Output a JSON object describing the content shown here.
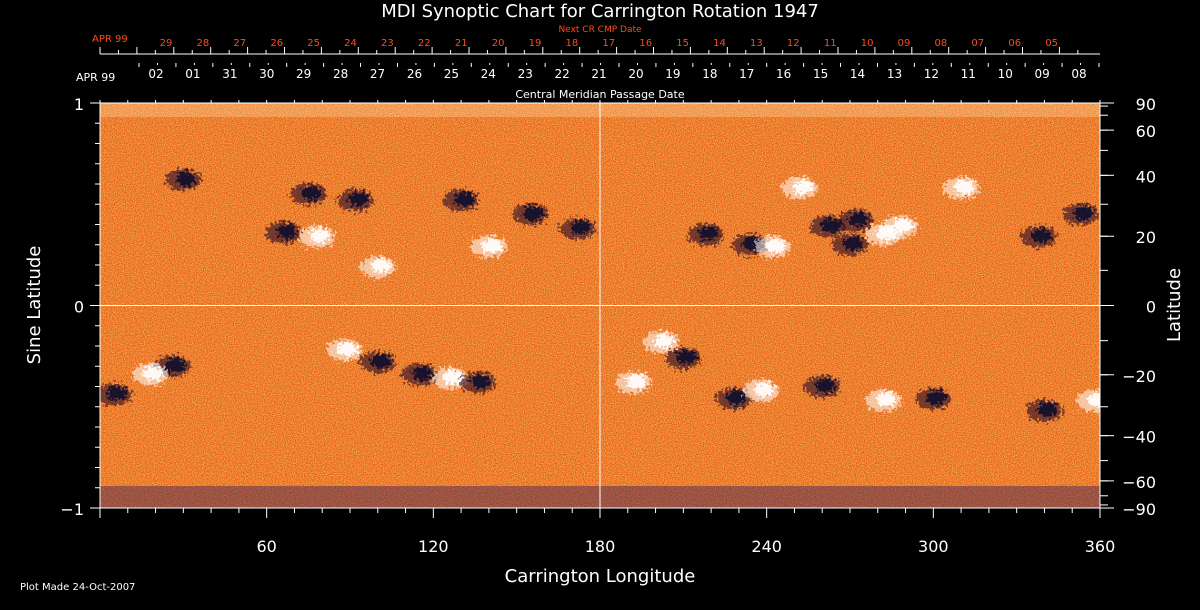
{
  "chart_data": {
    "type": "heatmap",
    "title": "MDI Synoptic Chart for Carrington Rotation 1947",
    "xlabel": "Carrington Longitude",
    "ylabel_left": "Sine Latitude",
    "ylabel_right": "Latitude",
    "xlim": [
      0,
      360
    ],
    "ylim": [
      -1,
      1
    ],
    "x_ticks": [
      60,
      120,
      180,
      240,
      300,
      360
    ],
    "y_ticks_left": [
      {
        "value": 1,
        "label": "1"
      },
      {
        "value": 0,
        "label": "0"
      },
      {
        "value": -1,
        "label": "−1"
      }
    ],
    "latitude_ticks": [
      {
        "lat": 90,
        "label": "90"
      },
      {
        "lat": 60,
        "label": "60"
      },
      {
        "lat": 40,
        "label": "40"
      },
      {
        "lat": 20,
        "label": "20"
      },
      {
        "lat": 0,
        "label": "0"
      },
      {
        "lat": -20,
        "label": "−20"
      },
      {
        "lat": -40,
        "label": "−40"
      },
      {
        "lat": -60,
        "label": "−60"
      },
      {
        "lat": -90,
        "label": "−90"
      }
    ],
    "grid_lines": {
      "x": [
        180
      ],
      "y": [
        0
      ]
    },
    "cmp_axis": {
      "title": "Central Meridian Passage Date",
      "month_label": "APR 99",
      "dates": [
        "02",
        "01",
        "31",
        "30",
        "29",
        "28",
        "27",
        "26",
        "25",
        "24",
        "23",
        "22",
        "21",
        "20",
        "19",
        "18",
        "17",
        "16",
        "15",
        "14",
        "13",
        "12",
        "11",
        "10",
        "09",
        "08"
      ]
    },
    "next_cmp_axis": {
      "title": "Next CR CMP Date",
      "month_label": "APR 99",
      "dates": [
        "29",
        "28",
        "27",
        "26",
        "25",
        "24",
        "23",
        "22",
        "21",
        "20",
        "19",
        "18",
        "17",
        "16",
        "15",
        "14",
        "13",
        "12",
        "11",
        "10",
        "09",
        "08",
        "07",
        "06",
        "05"
      ]
    },
    "colors": {
      "background": "#000000",
      "axes": "#ffffff",
      "next_axis": "#ff4a1a",
      "field_base": "#e85a10",
      "positive_polarity": "#ffffff",
      "negative_polarity": "#12082a"
    },
    "active_regions": [
      {
        "polarity": "negative",
        "lon": 30,
        "sinlat": 0.62
      },
      {
        "polarity": "negative",
        "lon": 66,
        "sinlat": 0.36
      },
      {
        "polarity": "positive",
        "lon": 78,
        "sinlat": 0.34
      },
      {
        "polarity": "negative",
        "lon": 92,
        "sinlat": 0.52
      },
      {
        "polarity": "negative",
        "lon": 75,
        "sinlat": 0.55
      },
      {
        "polarity": "positive",
        "lon": 100,
        "sinlat": 0.19
      },
      {
        "polarity": "negative",
        "lon": 130,
        "sinlat": 0.52
      },
      {
        "polarity": "negative",
        "lon": 155,
        "sinlat": 0.45
      },
      {
        "polarity": "positive",
        "lon": 140,
        "sinlat": 0.29
      },
      {
        "polarity": "negative",
        "lon": 172,
        "sinlat": 0.38
      },
      {
        "polarity": "negative",
        "lon": 218,
        "sinlat": 0.35
      },
      {
        "polarity": "negative",
        "lon": 234,
        "sinlat": 0.3
      },
      {
        "polarity": "positive",
        "lon": 242,
        "sinlat": 0.29
      },
      {
        "polarity": "positive",
        "lon": 252,
        "sinlat": 0.58
      },
      {
        "polarity": "negative",
        "lon": 262,
        "sinlat": 0.39
      },
      {
        "polarity": "negative",
        "lon": 272,
        "sinlat": 0.42
      },
      {
        "polarity": "positive",
        "lon": 282,
        "sinlat": 0.35
      },
      {
        "polarity": "positive",
        "lon": 288,
        "sinlat": 0.39
      },
      {
        "polarity": "negative",
        "lon": 270,
        "sinlat": 0.3
      },
      {
        "polarity": "positive",
        "lon": 310,
        "sinlat": 0.58
      },
      {
        "polarity": "negative",
        "lon": 338,
        "sinlat": 0.34
      },
      {
        "polarity": "negative",
        "lon": 353,
        "sinlat": 0.45
      },
      {
        "polarity": "negative",
        "lon": 5,
        "sinlat": -0.44
      },
      {
        "polarity": "negative",
        "lon": 26,
        "sinlat": -0.3
      },
      {
        "polarity": "positive",
        "lon": 18,
        "sinlat": -0.34
      },
      {
        "polarity": "positive",
        "lon": 88,
        "sinlat": -0.22
      },
      {
        "polarity": "negative",
        "lon": 100,
        "sinlat": -0.28
      },
      {
        "polarity": "negative",
        "lon": 115,
        "sinlat": -0.34
      },
      {
        "polarity": "positive",
        "lon": 126,
        "sinlat": -0.36
      },
      {
        "polarity": "negative",
        "lon": 136,
        "sinlat": -0.38
      },
      {
        "polarity": "positive",
        "lon": 202,
        "sinlat": -0.18
      },
      {
        "polarity": "negative",
        "lon": 210,
        "sinlat": -0.26
      },
      {
        "polarity": "positive",
        "lon": 192,
        "sinlat": -0.38
      },
      {
        "polarity": "negative",
        "lon": 228,
        "sinlat": -0.46
      },
      {
        "polarity": "positive",
        "lon": 238,
        "sinlat": -0.42
      },
      {
        "polarity": "negative",
        "lon": 260,
        "sinlat": -0.4
      },
      {
        "polarity": "positive",
        "lon": 282,
        "sinlat": -0.47
      },
      {
        "polarity": "negative",
        "lon": 300,
        "sinlat": -0.46
      },
      {
        "polarity": "negative",
        "lon": 340,
        "sinlat": -0.52
      },
      {
        "polarity": "positive",
        "lon": 358,
        "sinlat": -0.47
      }
    ]
  },
  "footer": {
    "plot_made": "Plot Made 24-Oct-2007"
  }
}
